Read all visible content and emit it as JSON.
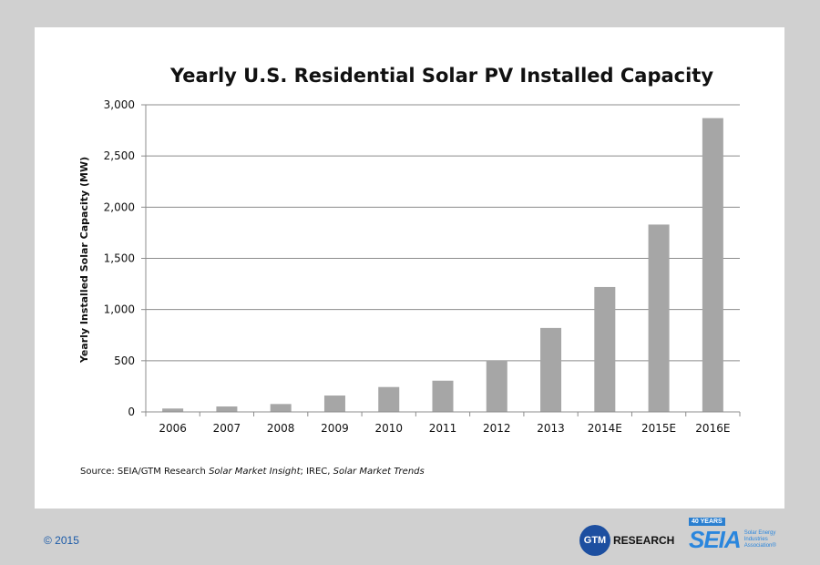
{
  "chart_data": {
    "type": "bar",
    "title": "Yearly U.S. Residential Solar PV Installed Capacity",
    "xlabel": "",
    "ylabel": "Yearly Installed Solar Capacity (MW)",
    "ylim": [
      0,
      3000
    ],
    "yticks": [
      0,
      500,
      1000,
      1500,
      2000,
      2500,
      3000
    ],
    "ytick_labels": [
      "0",
      "500",
      "1,000",
      "1,500",
      "2,000",
      "2,500",
      "3,000"
    ],
    "grid": true,
    "categories": [
      "2006",
      "2007",
      "2008",
      "2009",
      "2010",
      "2011",
      "2012",
      "2013",
      "2014E",
      "2015E",
      "2016E"
    ],
    "values": [
      33,
      53,
      77,
      160,
      243,
      305,
      500,
      820,
      1220,
      1830,
      2870
    ],
    "bar_color": "#a6a6a6",
    "source_parts": [
      "Source: SEIA/GTM Research ",
      "Solar Market Insight",
      "; IREC, ",
      "Solar Market Trends"
    ]
  },
  "footer": {
    "copyright": "© 2015",
    "gtm_logo": "GTM",
    "gtm_text": "RESEARCH",
    "seia_years": "40 YEARS",
    "seia_logo": "SEIA",
    "seia_text": "Solar Energy Industries Association®"
  }
}
